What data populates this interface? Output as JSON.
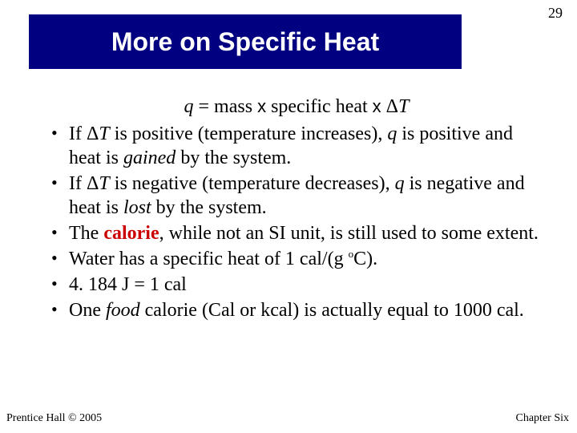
{
  "page_number": "29",
  "title": "More on Specific Heat",
  "title_bar": {
    "background_color": "#000080",
    "text_color": "#ffffff",
    "font_family": "Arial",
    "font_weight": "bold",
    "font_size_pt": 24
  },
  "body_font": {
    "family": "Times New Roman",
    "size_pt": 18,
    "color": "#000000"
  },
  "highlight_color": "#cc0000",
  "formula": {
    "q": "q",
    "eq": " = mass  ",
    "x1": "x",
    "mid": "  specific heat  ",
    "x2": "x",
    "sp": "  ",
    "delta": "Δ",
    "T": "T"
  },
  "bullets": {
    "b1_pre": "If Δ",
    "b1_T": "T",
    "b1_mid": " is positive (temperature increases), ",
    "b1_q": "q",
    "b1_mid2": " is positive and heat is ",
    "b1_gained": "gained",
    "b1_end": " by the system.",
    "b2_pre": "If Δ",
    "b2_T": "T",
    "b2_mid": " is negative (temperature decreases), ",
    "b2_q": "q",
    "b2_mid2": " is negative and heat is ",
    "b2_lost": "lost",
    "b2_end": " by the system.",
    "b3_pre": "The ",
    "b3_cal": "calorie",
    "b3_end": ", while not an SI unit, is still used to some extent.",
    "b4_pre": "Water has a specific heat of 1 cal/(g ",
    "b4_sup": "o",
    "b4_end": "C).",
    "b5": "4. 184 J = 1 cal",
    "b6_pre": "One ",
    "b6_food": "food",
    "b6_end": " calorie (Cal or kcal) is actually equal to 1000 cal."
  },
  "footer_left": "Prentice Hall © 2005",
  "footer_right": "Chapter Six"
}
